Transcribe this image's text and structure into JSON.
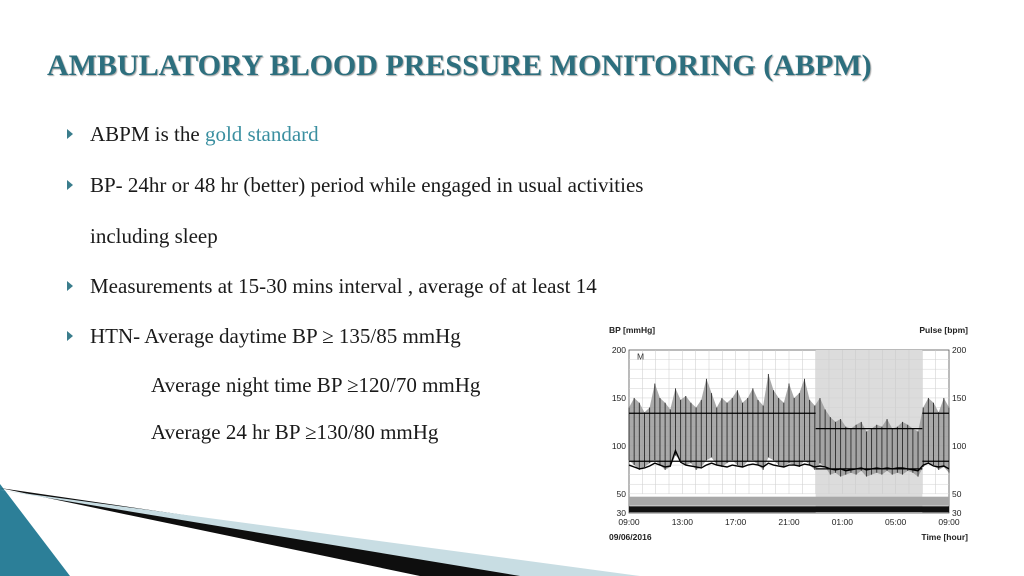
{
  "slide": {
    "title": "AMBULATORY BLOOD PRESSURE MONITORING (ABPM)",
    "bullets": [
      {
        "text": "ABPM is the ",
        "highlight": "gold standard"
      },
      {
        "text": "BP- 24hr or 48 hr (better) period  while engaged in  usual activities"
      },
      {
        "text": "Measurements at 15-30 mins interval , average of at least 14"
      },
      {
        "text": "HTN-  Average daytime BP ≥ 135/85 mmHg"
      }
    ],
    "continuation": "including sleep",
    "sub_lines": [
      "Average  night time BP ≥120/70 mmHg",
      "Average 24 hr BP ≥130/80 mmHg"
    ]
  },
  "colors": {
    "title": "#2d6f7e",
    "accent": "#3a8fa0",
    "teal_band": "#2c7f98",
    "black_band": "#111111"
  },
  "chart_data": {
    "type": "area",
    "left_axis_title": "BP [mmHg]",
    "right_axis_title": "Pulse [bpm]",
    "y_ticks": [
      30,
      50,
      100,
      150,
      200
    ],
    "ylim": [
      30,
      200
    ],
    "x_ticks": [
      "09:00",
      "13:00",
      "17:00",
      "21:00",
      "01:00",
      "05:00",
      "09:00"
    ],
    "x_range_hours": [
      0,
      24
    ],
    "date_label": "09/06/2016",
    "x_axis_title": "Time [hour]",
    "marker_label": "M",
    "night_period_hours": [
      14,
      22
    ],
    "day_mean_levels": {
      "systolic": 134,
      "diastolic": 84
    },
    "night_mean_levels": {
      "systolic": 118,
      "diastolic": 76
    },
    "systolic": [
      140,
      150,
      145,
      135,
      140,
      165,
      150,
      145,
      138,
      160,
      148,
      152,
      145,
      140,
      148,
      170,
      155,
      140,
      150,
      145,
      150,
      158,
      145,
      150,
      160,
      148,
      142,
      175,
      158,
      150,
      145,
      165,
      150,
      155,
      170,
      148,
      142,
      150,
      138,
      130,
      125,
      128,
      120,
      118,
      122,
      125,
      115,
      118,
      122,
      120,
      128,
      118,
      120,
      125,
      122,
      118,
      115,
      140,
      150,
      145,
      135,
      150,
      140
    ],
    "diastolic": [
      85,
      80,
      75,
      78,
      82,
      85,
      80,
      75,
      78,
      90,
      85,
      80,
      82,
      75,
      78,
      85,
      88,
      80,
      78,
      82,
      85,
      80,
      78,
      84,
      85,
      80,
      75,
      88,
      85,
      80,
      78,
      82,
      80,
      78,
      85,
      80,
      75,
      82,
      78,
      70,
      72,
      68,
      70,
      72,
      70,
      74,
      68,
      70,
      72,
      70,
      74,
      70,
      72,
      70,
      74,
      72,
      68,
      78,
      82,
      80,
      75,
      78,
      72
    ],
    "pulse": [
      80,
      78,
      76,
      77,
      79,
      82,
      80,
      78,
      79,
      95,
      83,
      80,
      79,
      78,
      77,
      80,
      82,
      80,
      79,
      78,
      80,
      79,
      78,
      80,
      81,
      80,
      78,
      82,
      80,
      79,
      78,
      80,
      80,
      79,
      81,
      80,
      78,
      79,
      78,
      76,
      75,
      76,
      74,
      75,
      76,
      77,
      75,
      76,
      77,
      76,
      77,
      76,
      77,
      77,
      76,
      75,
      74,
      80,
      82,
      79,
      78,
      79,
      76
    ]
  }
}
